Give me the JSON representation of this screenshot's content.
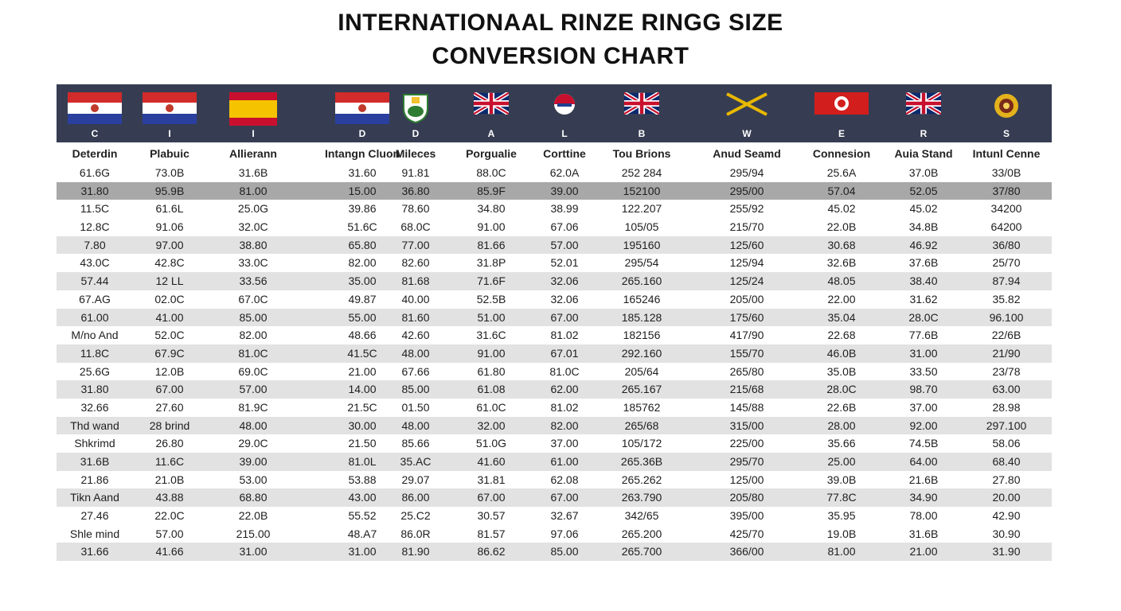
{
  "chart_data": {
    "type": "table",
    "title_lines": [
      "INTERNATIONAAL RINZE RINGG SIZE",
      "CONVERSION CHART"
    ],
    "flags": [
      {
        "letter": "C",
        "icon": "flag-red-white-blue-icon"
      },
      {
        "letter": "I",
        "icon": "flag-red-white-blue-icon"
      },
      {
        "letter": "I",
        "icon": "flag-spain-icon"
      },
      {
        "letter": "D",
        "icon": "flag-red-white-blue-icon"
      },
      {
        "letter": "D",
        "icon": "flag-crest-icon"
      },
      {
        "letter": "A",
        "icon": "flag-union-jack-icon"
      },
      {
        "letter": "L",
        "icon": "flag-circle-icon"
      },
      {
        "letter": "B",
        "icon": "flag-union-jack-icon"
      },
      {
        "letter": "W",
        "icon": "flag-saltire-icon"
      },
      {
        "letter": "E",
        "icon": "flag-red-circle-icon"
      },
      {
        "letter": "R",
        "icon": "flag-union-jack-icon"
      },
      {
        "letter": "S",
        "icon": "flag-emblem-icon"
      }
    ],
    "columns": [
      "Deterdin",
      "Plabuic",
      "Allierann",
      "Intangn Cluon",
      "Mileces",
      "Porgualie",
      "Corttine",
      "Tou Brions",
      "Anud Seamd",
      "Connesion",
      "Auia Stand",
      "Intunl Cenne"
    ],
    "rows": [
      [
        "61.6G",
        "73.0B",
        "31.6B",
        "31.60",
        "91.81",
        "88.0C",
        "62.0A",
        "252 284",
        "295/94",
        "25.6A",
        "37.0B",
        "33/0B"
      ],
      [
        "31.80",
        "95.9B",
        "81.00",
        "15.00",
        "36.80",
        "85.9F",
        "39.00",
        "152100",
        "295/00",
        "57.04",
        "52.05",
        "37/80"
      ],
      [
        "11.5C",
        "61.6L",
        "25.0G",
        "39.86",
        "78.60",
        "34.80",
        "38.99",
        "122.207",
        "255/92",
        "45.02",
        "45.02",
        "34200"
      ],
      [
        "12.8C",
        "91.06",
        "32.0C",
        "51.6C",
        "68.0C",
        "91.00",
        "67.06",
        "105/05",
        "215/70",
        "22.0B",
        "34.8B",
        "64200"
      ],
      [
        "7.80",
        "97.00",
        "38.80",
        "65.80",
        "77.00",
        "81.66",
        "57.00",
        "195160",
        "125/60",
        "30.68",
        "46.92",
        "36/80"
      ],
      [
        "43.0C",
        "42.8C",
        "33.0C",
        "82.00",
        "82.60",
        "31.8P",
        "52.01",
        "295/54",
        "125/94",
        "32.6B",
        "37.6B",
        "25/70"
      ],
      [
        "57.44",
        "12 LL",
        "33.56",
        "35.00",
        "81.68",
        "71.6F",
        "32.06",
        "265.160",
        "125/24",
        "48.05",
        "38.40",
        "87.94"
      ],
      [
        "67.AG",
        "02.0C",
        "67.0C",
        "49.87",
        "40.00",
        "52.5B",
        "32.06",
        "165246",
        "205/00",
        "22.00",
        "31.62",
        "35.82"
      ],
      [
        "61.00",
        "41.00",
        "85.00",
        "55.00",
        "81.60",
        "51.00",
        "67.00",
        "185.128",
        "175/60",
        "35.04",
        "28.0C",
        "96.100"
      ],
      [
        "M/no And",
        "52.0C",
        "82.00",
        "48.66",
        "42.60",
        "31.6C",
        "81.02",
        "182156",
        "417/90",
        "22.68",
        "77.6B",
        "22/6B"
      ],
      [
        "11.8C",
        "67.9C",
        "81.0C",
        "41.5C",
        "48.00",
        "91.00",
        "67.01",
        "292.160",
        "155/70",
        "46.0B",
        "31.00",
        "21/90"
      ],
      [
        "25.6G",
        "12.0B",
        "69.0C",
        "21.00",
        "67.66",
        "61.80",
        "81.0C",
        "205/64",
        "265/80",
        "35.0B",
        "33.50",
        "23/78"
      ],
      [
        "31.80",
        "67.00",
        "57.00",
        "14.00",
        "85.00",
        "61.08",
        "62.00",
        "265.167",
        "215/68",
        "28.0C",
        "98.70",
        "63.00"
      ],
      [
        "32.66",
        "27.60",
        "81.9C",
        "21.5C",
        "01.50",
        "61.0C",
        "81.02",
        "185762",
        "145/88",
        "22.6B",
        "37.00",
        "28.98"
      ],
      [
        "Thd wand",
        "28 brind",
        "48.00",
        "30.00",
        "48.00",
        "32.00",
        "82.00",
        "265/68",
        "315/00",
        "28.00",
        "92.00",
        "297.100"
      ],
      [
        "Shkrimd",
        "26.80",
        "29.0C",
        "21.50",
        "85.66",
        "51.0G",
        "37.00",
        "105/172",
        "225/00",
        "35.66",
        "74.5B",
        "58.06"
      ],
      [
        "31.6B",
        "11.6C",
        "39.00",
        "81.0L",
        "35.AC",
        "41.60",
        "61.00",
        "265.36B",
        "295/70",
        "25.00",
        "64.00",
        "68.40"
      ],
      [
        "21.86",
        "21.0B",
        "53.00",
        "53.88",
        "29.07",
        "31.81",
        "62.08",
        "265.262",
        "125/00",
        "39.0B",
        "21.6B",
        "27.80"
      ],
      [
        "Tikn Aand",
        "43.88",
        "68.80",
        "43.00",
        "86.00",
        "67.00",
        "67.00",
        "263.790",
        "205/80",
        "77.8C",
        "34.90",
        "20.00"
      ],
      [
        "27.46",
        "22.0C",
        "22.0B",
        "55.52",
        "25.C2",
        "30.57",
        "32.67",
        "342/65",
        "395/00",
        "35.95",
        "78.00",
        "42.90"
      ],
      [
        "Shle mind",
        "57.00",
        "215.00",
        "48.A7",
        "86.0R",
        "81.57",
        "97.06",
        "265.200",
        "425/70",
        "19.0B",
        "31.6B",
        "30.90"
      ],
      [
        "31.66",
        "41.66",
        "31.00",
        "31.00",
        "81.90",
        "86.62",
        "85.00",
        "265.700",
        "366/00",
        "81.00",
        "21.00",
        "31.90"
      ]
    ],
    "row_shading": [
      "none",
      "dark",
      "none",
      "none",
      "light",
      "none",
      "light",
      "none",
      "light",
      "none",
      "light",
      "none",
      "light",
      "none",
      "light",
      "none",
      "light",
      "none",
      "light",
      "none",
      "none",
      "light"
    ],
    "colors": {
      "header_bg": "#363d52",
      "dark_row": "#a8a8a8",
      "light_row": "#e2e2e2"
    }
  }
}
